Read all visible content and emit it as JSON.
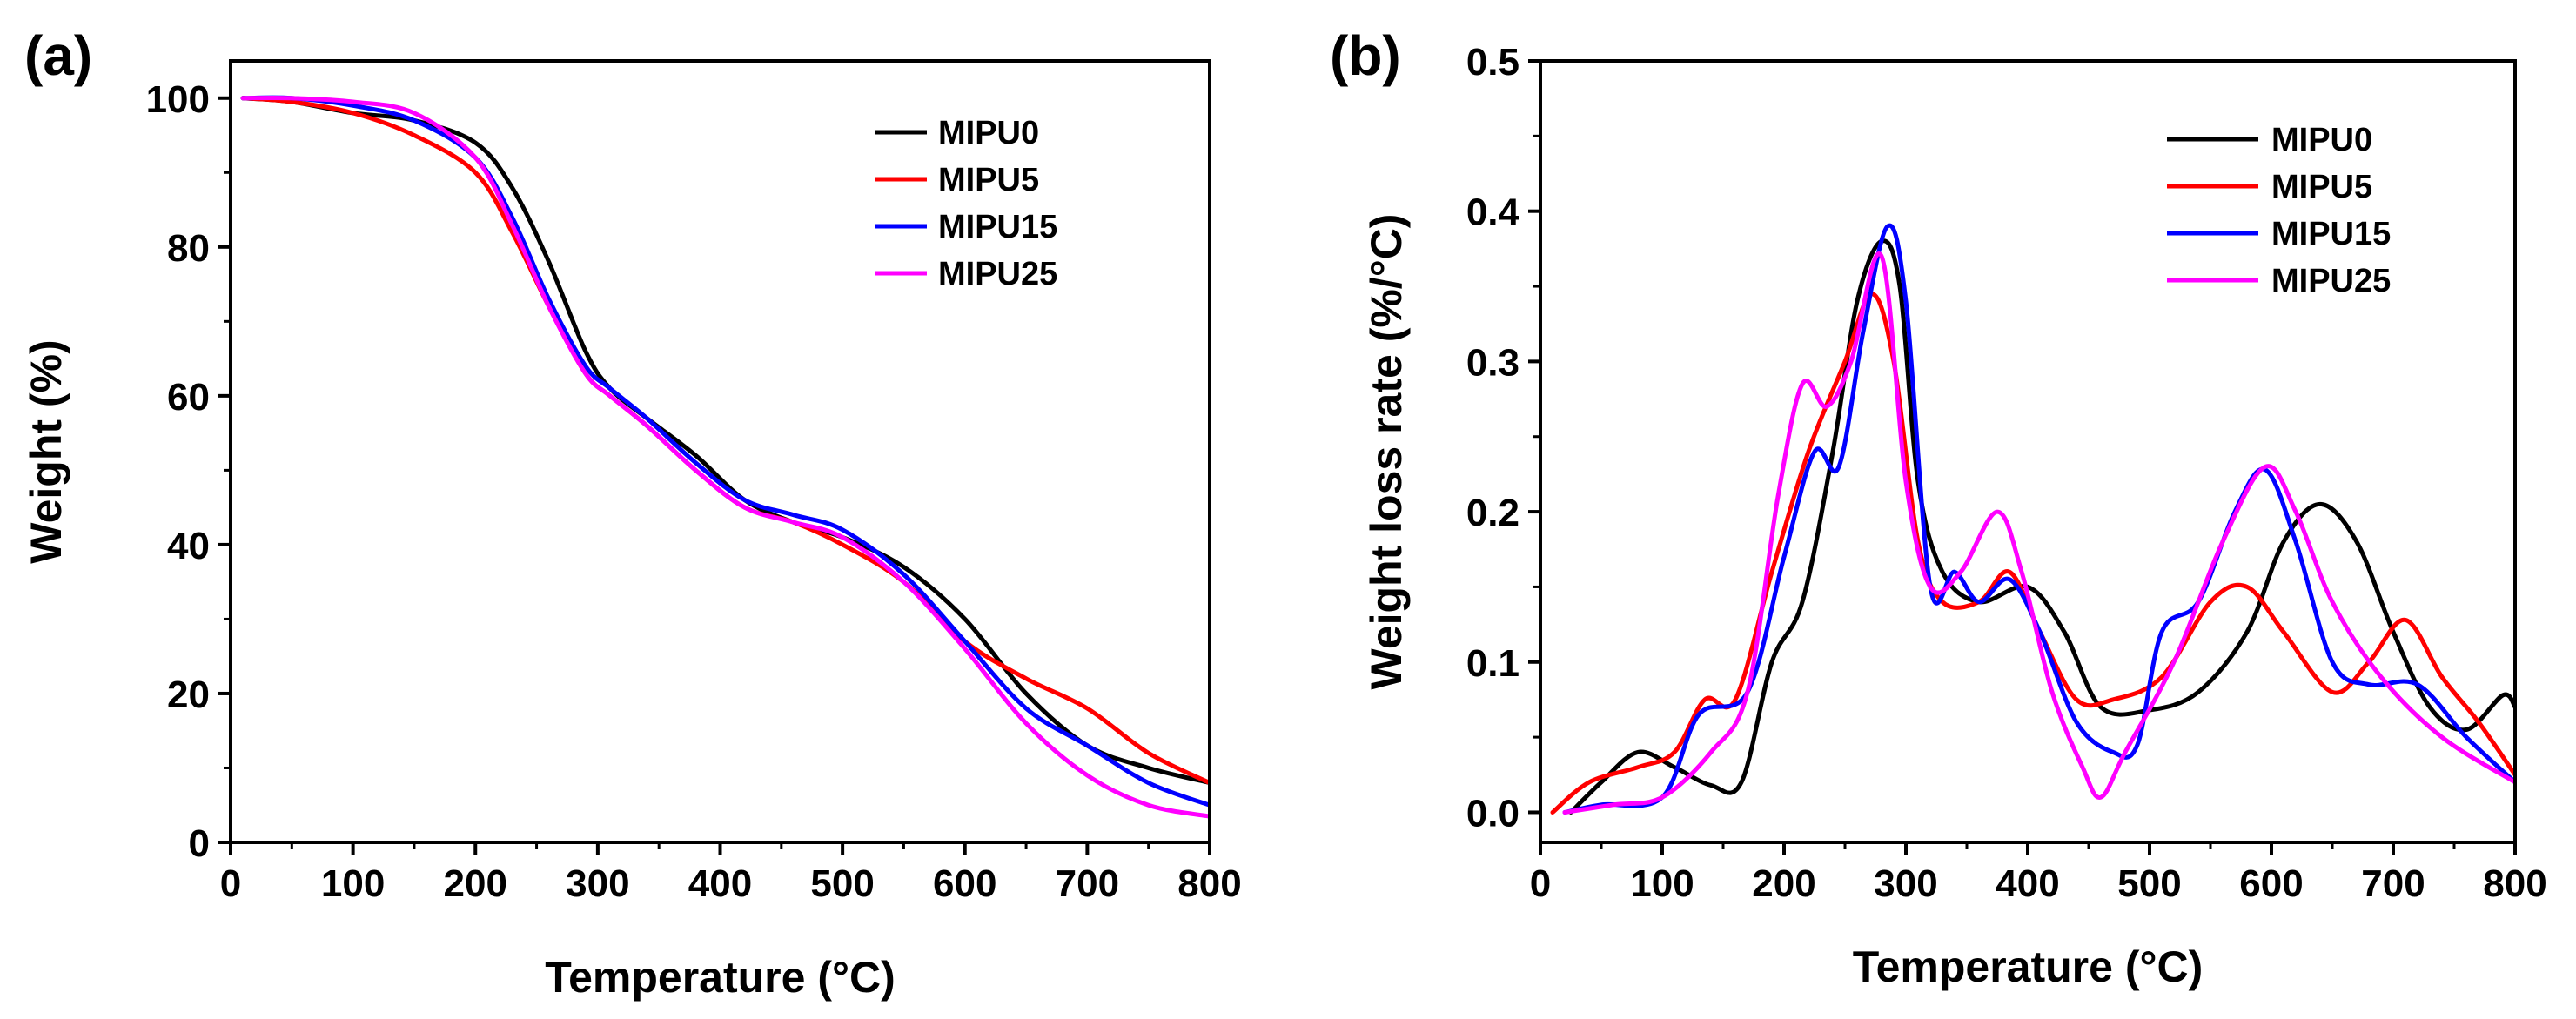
{
  "chart_data": [
    {
      "panel_label": "(a)",
      "type": "line",
      "xlabel": "Temperature (°C)",
      "ylabel": "Weight (%)",
      "xlim": [
        0,
        800
      ],
      "ylim": [
        0,
        105
      ],
      "xticks": [
        0,
        100,
        200,
        300,
        400,
        500,
        600,
        700,
        800
      ],
      "yticks": [
        0,
        20,
        40,
        60,
        80,
        100
      ],
      "xtick_labels": [
        "0",
        "100",
        "200",
        "300",
        "400",
        "500",
        "600",
        "700",
        "800"
      ],
      "ytick_labels": [
        "0",
        "20",
        "40",
        "60",
        "80",
        "100"
      ],
      "legend_position": "top-right",
      "series": [
        {
          "name": "MIPU0",
          "color": "#000000",
          "x": [
            10,
            50,
            100,
            150,
            200,
            230,
            260,
            290,
            310,
            340,
            380,
            420,
            460,
            500,
            550,
            600,
            650,
            700,
            750,
            800
          ],
          "y": [
            100,
            99.5,
            98,
            97,
            94,
            88,
            78,
            66,
            61,
            57,
            52,
            46,
            43,
            41,
            37,
            30,
            20,
            13,
            10,
            8
          ]
        },
        {
          "name": "MIPU5",
          "color": "#ff0000",
          "x": [
            10,
            50,
            100,
            150,
            200,
            230,
            260,
            290,
            310,
            340,
            380,
            420,
            460,
            500,
            550,
            600,
            650,
            700,
            750,
            800
          ],
          "y": [
            100,
            99.5,
            98,
            95,
            90,
            82,
            72,
            63,
            60,
            56,
            50,
            45,
            43,
            40,
            35,
            27,
            22,
            18,
            12,
            8
          ]
        },
        {
          "name": "MIPU15",
          "color": "#0000ff",
          "x": [
            10,
            50,
            100,
            150,
            200,
            230,
            260,
            290,
            310,
            340,
            380,
            420,
            460,
            500,
            550,
            600,
            650,
            700,
            750,
            800
          ],
          "y": [
            100,
            100,
            99,
            97,
            92,
            84,
            73,
            64,
            61,
            57,
            51,
            46,
            44,
            42,
            36,
            27,
            18,
            13,
            8,
            5
          ]
        },
        {
          "name": "MIPU25",
          "color": "#ff00ff",
          "x": [
            10,
            50,
            100,
            150,
            200,
            230,
            260,
            290,
            310,
            340,
            380,
            420,
            460,
            500,
            550,
            600,
            650,
            700,
            750,
            800
          ],
          "y": [
            100,
            100,
            99.5,
            98,
            92,
            83,
            72,
            63,
            60,
            56,
            50,
            45,
            43,
            41,
            35,
            26,
            16,
            9,
            5,
            3.5
          ]
        }
      ]
    },
    {
      "panel_label": "(b)",
      "type": "line",
      "xlabel": "Temperature (°C)",
      "ylabel": "Weight loss rate (%/°C)",
      "xlim": [
        0,
        800
      ],
      "ylim": [
        -0.02,
        0.5
      ],
      "xticks": [
        0,
        100,
        200,
        300,
        400,
        500,
        600,
        700,
        800
      ],
      "yticks": [
        0,
        0.1,
        0.2,
        0.3,
        0.4,
        0.5
      ],
      "xtick_labels": [
        "0",
        "100",
        "200",
        "300",
        "400",
        "500",
        "600",
        "700",
        "800"
      ],
      "ytick_labels": [
        "0.0",
        "0.1",
        "0.2",
        "0.3",
        "0.4",
        "0.5"
      ],
      "legend_position": "top-right",
      "series": [
        {
          "name": "MIPU0",
          "color": "#000000",
          "x": [
            25,
            50,
            80,
            110,
            140,
            165,
            190,
            215,
            240,
            260,
            280,
            295,
            310,
            330,
            360,
            400,
            430,
            460,
            500,
            540,
            580,
            610,
            640,
            670,
            700,
            730,
            760,
            790,
            800
          ],
          "y": [
            0,
            0.02,
            0.04,
            0.03,
            0.018,
            0.02,
            0.1,
            0.14,
            0.24,
            0.34,
            0.38,
            0.35,
            0.22,
            0.16,
            0.14,
            0.15,
            0.12,
            0.07,
            0.068,
            0.08,
            0.12,
            0.18,
            0.205,
            0.18,
            0.12,
            0.07,
            0.055,
            0.078,
            0.07
          ]
        },
        {
          "name": "MIPU5",
          "color": "#ff0000",
          "x": [
            10,
            40,
            80,
            110,
            135,
            160,
            190,
            220,
            250,
            272,
            290,
            310,
            330,
            360,
            385,
            410,
            440,
            470,
            510,
            550,
            580,
            610,
            650,
            680,
            710,
            740,
            770,
            800
          ],
          "y": [
            0,
            0.02,
            0.03,
            0.04,
            0.075,
            0.075,
            0.16,
            0.24,
            0.3,
            0.345,
            0.3,
            0.18,
            0.14,
            0.14,
            0.16,
            0.12,
            0.075,
            0.075,
            0.09,
            0.14,
            0.15,
            0.12,
            0.08,
            0.1,
            0.128,
            0.09,
            0.06,
            0.025
          ]
        },
        {
          "name": "MIPU15",
          "color": "#0000ff",
          "x": [
            20,
            50,
            100,
            130,
            170,
            200,
            225,
            245,
            265,
            285,
            300,
            320,
            340,
            360,
            385,
            410,
            440,
            470,
            490,
            510,
            540,
            570,
            595,
            620,
            650,
            680,
            720,
            760,
            800
          ],
          "y": [
            0,
            0.005,
            0.01,
            0.065,
            0.08,
            0.17,
            0.24,
            0.23,
            0.32,
            0.39,
            0.34,
            0.15,
            0.16,
            0.14,
            0.155,
            0.12,
            0.06,
            0.04,
            0.045,
            0.12,
            0.14,
            0.2,
            0.228,
            0.18,
            0.1,
            0.085,
            0.085,
            0.05,
            0.02
          ]
        },
        {
          "name": "MIPU25",
          "color": "#ff00ff",
          "x": [
            20,
            60,
            100,
            140,
            170,
            195,
            215,
            235,
            255,
            280,
            300,
            320,
            345,
            375,
            395,
            420,
            445,
            460,
            480,
            520,
            560,
            595,
            620,
            650,
            690,
            740,
            800
          ],
          "y": [
            0,
            0.005,
            0.01,
            0.04,
            0.08,
            0.21,
            0.285,
            0.27,
            0.3,
            0.37,
            0.22,
            0.15,
            0.16,
            0.2,
            0.16,
            0.08,
            0.03,
            0.01,
            0.04,
            0.1,
            0.18,
            0.23,
            0.2,
            0.14,
            0.09,
            0.05,
            0.02
          ]
        }
      ]
    }
  ]
}
